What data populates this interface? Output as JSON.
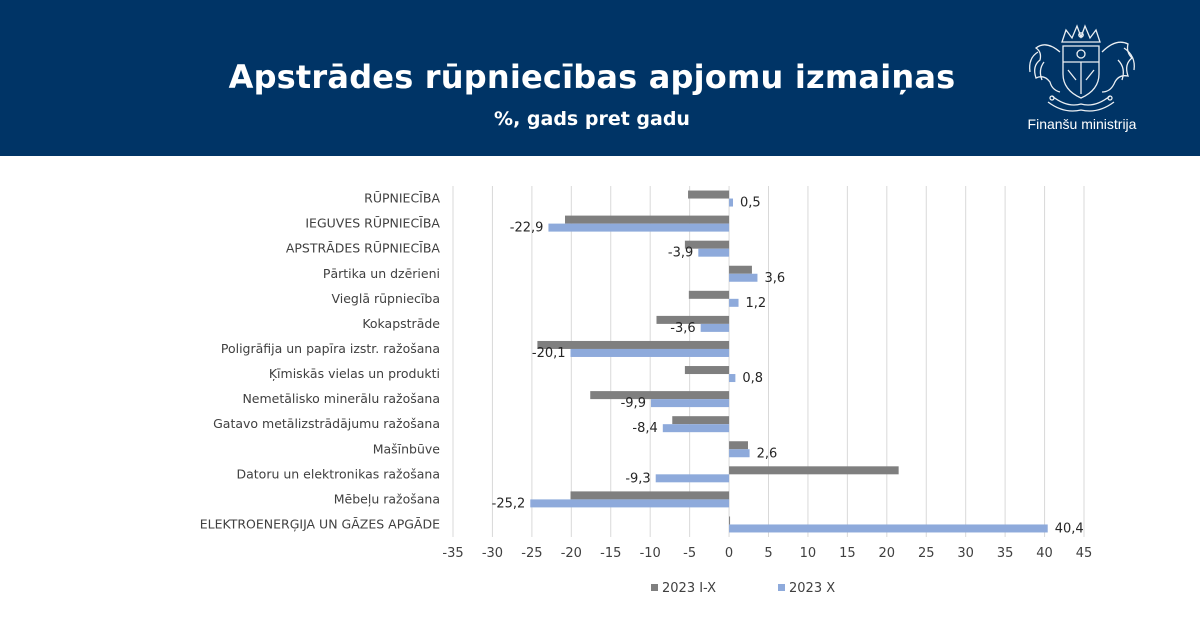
{
  "header": {
    "title": "Apstrādes rūpniecības apjomu izmaiņas",
    "subtitle": "%, gads pret gadu",
    "org_name": "Finanšu ministrija",
    "background_color": "#003466",
    "logo_icon": "latvia-coat-of-arms-icon"
  },
  "chart_data": {
    "type": "bar",
    "orientation": "horizontal",
    "title": "Apstrādes rūpniecības apjomu izmaiņas",
    "subtitle": "%, gads pret gadu",
    "categories": [
      "RŪPNIECĪBA",
      "IEGUVES RŪPNIECĪBA",
      "APSTRĀDES RŪPNIECĪBA",
      "Pārtika un dzērieni",
      "Vieglā rūpniecība",
      "Kokapstrāde",
      "Poligrāfija un papīra izstr. ražošana",
      "Ķīmiskās vielas un produkti",
      "Nemetālisko minerālu ražošana",
      "Gatavo metālizstrādājumu ražošana",
      "Mašīnbūve",
      "Datoru un elektronikas ražošana",
      "Mēbeļu ražošana",
      "ELEKTROENERĢIJA UN GĀZES APGĀDE"
    ],
    "series": [
      {
        "name": "2023 I-X",
        "color": "#7f7f7f",
        "values": [
          -5.2,
          -20.8,
          -5.6,
          2.9,
          -5.1,
          -9.2,
          -24.3,
          -5.6,
          -17.6,
          -7.2,
          2.4,
          21.5,
          -20.1,
          0.1
        ]
      },
      {
        "name": "2023 X",
        "color": "#8eaadb",
        "values": [
          0.5,
          -22.9,
          -3.9,
          3.6,
          1.2,
          -3.6,
          -20.1,
          0.8,
          -9.9,
          -8.4,
          2.6,
          -9.3,
          -25.2,
          40.4
        ]
      }
    ],
    "data_labels": [
      "0,5",
      "-22,9",
      "-3,9",
      "3,6",
      "1,2",
      "-3,6",
      "-20,1",
      "0,8",
      "-9,9",
      "-8,4",
      "2,6",
      "-9,3",
      "-25,2",
      "40,4"
    ],
    "xlim": [
      -35,
      45
    ],
    "xticks": [
      -35,
      -30,
      -25,
      -20,
      -15,
      -10,
      -5,
      0,
      5,
      10,
      15,
      20,
      25,
      30,
      35,
      40,
      45
    ],
    "grid": true,
    "legend_position": "bottom"
  }
}
